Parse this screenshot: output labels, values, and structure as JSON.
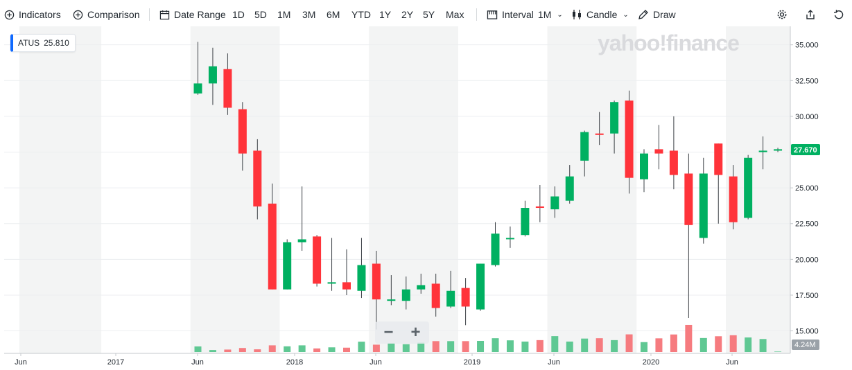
{
  "toolbar": {
    "indicators": "Indicators",
    "comparison": "Comparison",
    "date_range": "Date Range",
    "ranges": [
      "1D",
      "5D",
      "1M",
      "3M",
      "6M",
      "YTD",
      "1Y",
      "2Y",
      "5Y",
      "Max"
    ],
    "interval_label": "Interval",
    "interval_value": "1M",
    "chart_type": "Candle",
    "draw": "Draw"
  },
  "ticker": {
    "symbol": "ATUS",
    "value": "25.810",
    "accent": "#0f69ff"
  },
  "watermark": "yahoo!finance",
  "zoom": {
    "minus": "−",
    "plus": "+"
  },
  "colors": {
    "up": "#00b061",
    "down": "#ff333a",
    "vol_up": "#5fc893",
    "vol_down": "#f67b7f",
    "shade": "#f3f4f4"
  },
  "chart_data": {
    "type": "candlestick",
    "ylim": [
      14.3,
      35.6
    ],
    "y_ticks": [
      "15.000",
      "17.500",
      "20.000",
      "22.500",
      "25.000",
      "27.500",
      "30.000",
      "32.500",
      "35.000"
    ],
    "x_labels": [
      "Jun",
      "2017",
      "Jun",
      "2018",
      "Jun",
      "2019",
      "Jun",
      "2020",
      "Jun"
    ],
    "last_price": "27.670",
    "volume_label": "4.24M",
    "candles": [
      {
        "d": "2017-06",
        "o": 31.6,
        "h": 35.2,
        "l": 31.5,
        "c": 32.3
      },
      {
        "d": "2017-07",
        "o": 32.3,
        "h": 34.8,
        "l": 30.8,
        "c": 33.5
      },
      {
        "d": "2017-08",
        "o": 33.3,
        "h": 34.4,
        "l": 30.1,
        "c": 30.6
      },
      {
        "d": "2017-09",
        "o": 30.5,
        "h": 31.0,
        "l": 26.2,
        "c": 27.4
      },
      {
        "d": "2017-10",
        "o": 27.6,
        "h": 28.4,
        "l": 22.8,
        "c": 23.7
      },
      {
        "d": "2017-11",
        "o": 23.9,
        "h": 25.3,
        "l": 17.9,
        "c": 17.9
      },
      {
        "d": "2017-12",
        "o": 17.9,
        "h": 21.4,
        "l": 17.9,
        "c": 21.2
      },
      {
        "d": "2018-01",
        "o": 21.2,
        "h": 25.1,
        "l": 20.6,
        "c": 21.4
      },
      {
        "d": "2018-02",
        "o": 21.6,
        "h": 21.7,
        "l": 18.1,
        "c": 18.3
      },
      {
        "d": "2018-03",
        "o": 18.3,
        "h": 21.5,
        "l": 17.8,
        "c": 18.4
      },
      {
        "d": "2018-04",
        "o": 18.4,
        "h": 20.7,
        "l": 17.5,
        "c": 17.9
      },
      {
        "d": "2018-05",
        "o": 17.8,
        "h": 21.5,
        "l": 17.3,
        "c": 19.6
      },
      {
        "d": "2018-06",
        "o": 19.7,
        "h": 20.6,
        "l": 15.1,
        "c": 17.2
      },
      {
        "d": "2018-07",
        "o": 17.1,
        "h": 18.9,
        "l": 16.8,
        "c": 17.2
      },
      {
        "d": "2018-08",
        "o": 17.1,
        "h": 18.8,
        "l": 16.5,
        "c": 17.9
      },
      {
        "d": "2018-09",
        "o": 17.9,
        "h": 19.0,
        "l": 17.6,
        "c": 18.2
      },
      {
        "d": "2018-10",
        "o": 18.3,
        "h": 19.0,
        "l": 16.0,
        "c": 16.6
      },
      {
        "d": "2018-11",
        "o": 16.7,
        "h": 19.2,
        "l": 16.6,
        "c": 17.8
      },
      {
        "d": "2018-12",
        "o": 18.0,
        "h": 18.7,
        "l": 15.4,
        "c": 16.7
      },
      {
        "d": "2019-01",
        "o": 16.5,
        "h": 19.7,
        "l": 16.4,
        "c": 19.7
      },
      {
        "d": "2019-02",
        "o": 19.6,
        "h": 22.6,
        "l": 19.5,
        "c": 21.8
      },
      {
        "d": "2019-03",
        "o": 21.5,
        "h": 22.3,
        "l": 20.8,
        "c": 21.5
      },
      {
        "d": "2019-04",
        "o": 21.7,
        "h": 24.1,
        "l": 21.6,
        "c": 23.6
      },
      {
        "d": "2019-05",
        "o": 23.7,
        "h": 25.2,
        "l": 22.6,
        "c": 23.6
      },
      {
        "d": "2019-06",
        "o": 23.5,
        "h": 25.1,
        "l": 22.9,
        "c": 24.4
      },
      {
        "d": "2019-07",
        "o": 24.1,
        "h": 26.6,
        "l": 23.9,
        "c": 25.8
      },
      {
        "d": "2019-08",
        "o": 26.9,
        "h": 29.0,
        "l": 25.8,
        "c": 28.9
      },
      {
        "d": "2019-09",
        "o": 28.8,
        "h": 30.3,
        "l": 28.0,
        "c": 28.7
      },
      {
        "d": "2019-10",
        "o": 28.8,
        "h": 31.1,
        "l": 27.4,
        "c": 31.0
      },
      {
        "d": "2019-11",
        "o": 31.1,
        "h": 31.8,
        "l": 24.6,
        "c": 25.7
      },
      {
        "d": "2019-12",
        "o": 25.6,
        "h": 27.7,
        "l": 24.7,
        "c": 27.4
      },
      {
        "d": "2020-01",
        "o": 27.7,
        "h": 29.4,
        "l": 26.3,
        "c": 27.4
      },
      {
        "d": "2020-02",
        "o": 27.6,
        "h": 30.0,
        "l": 24.9,
        "c": 25.9
      },
      {
        "d": "2020-03",
        "o": 26.0,
        "h": 27.4,
        "l": 15.9,
        "c": 22.4
      },
      {
        "d": "2020-04",
        "o": 21.5,
        "h": 27.1,
        "l": 21.1,
        "c": 26.0
      },
      {
        "d": "2020-05",
        "o": 28.1,
        "h": 28.1,
        "l": 22.5,
        "c": 25.9
      },
      {
        "d": "2020-06",
        "o": 25.8,
        "h": 26.6,
        "l": 22.1,
        "c": 22.6
      },
      {
        "d": "2020-07",
        "o": 22.9,
        "h": 27.3,
        "l": 22.8,
        "c": 27.1
      },
      {
        "d": "2020-08",
        "o": 27.5,
        "h": 28.6,
        "l": 26.3,
        "c": 27.6
      },
      {
        "d": "2020-09",
        "o": 27.6,
        "h": 27.8,
        "l": 27.5,
        "c": 27.7
      }
    ],
    "volume_ratio": [
      0.5,
      0.18,
      0.22,
      0.36,
      0.24,
      0.6,
      0.51,
      0.6,
      0.32,
      0.42,
      0.39,
      0.93,
      0.66,
      0.8,
      0.7,
      0.85,
      0.98,
      0.98,
      0.98,
      1.0,
      1.24,
      1.05,
      0.94,
      1.07,
      1.43,
      0.94,
      1.21,
      1.24,
      1.07,
      1.59,
      0.89,
      1.23,
      1.58,
      2.44,
      1.26,
      1.42,
      1.51,
      1.31,
      1.17,
      0.04
    ]
  }
}
